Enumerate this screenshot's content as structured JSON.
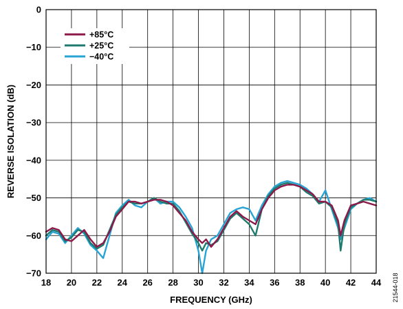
{
  "chart_data": {
    "type": "line",
    "title": "",
    "xlabel": "FREQUENCY (GHz)",
    "ylabel": "REVERSE ISOLATION (dB)",
    "xlim": [
      18,
      44
    ],
    "ylim": [
      -70,
      0
    ],
    "x_ticks": [
      "18",
      "20",
      "22",
      "24",
      "26",
      "28",
      "30",
      "32",
      "34",
      "36",
      "38",
      "40",
      "42",
      "44"
    ],
    "y_ticks": [
      "0",
      "−10",
      "−20",
      "−30",
      "−40",
      "−50",
      "−60",
      "−70"
    ],
    "grid": true,
    "legend_position": "top-left",
    "figure_id": "21544-018",
    "series": [
      {
        "name": "+85°C",
        "color": "#8b1a4a",
        "x": [
          18,
          18.5,
          19,
          19.5,
          20,
          20.5,
          21,
          21.5,
          22,
          22.5,
          23,
          23.5,
          24,
          24.5,
          25,
          25.5,
          26,
          26.5,
          27,
          27.5,
          28,
          28.5,
          29,
          29.5,
          30,
          30.3,
          30.6,
          31,
          31.5,
          32,
          32.5,
          33,
          33.5,
          34,
          34.5,
          35,
          35.5,
          36,
          36.5,
          37,
          37.5,
          38,
          38.5,
          39,
          39.5,
          40,
          40.5,
          41,
          41.2,
          41.5,
          42,
          42.5,
          43,
          43.5,
          44
        ],
        "values": [
          -59,
          -58,
          -58.5,
          -61,
          -61.5,
          -60,
          -58.5,
          -61,
          -63,
          -62,
          -59,
          -55,
          -53,
          -51,
          -51,
          -51.5,
          -51,
          -50.5,
          -50.5,
          -51,
          -52,
          -54,
          -56,
          -59,
          -61,
          -62,
          -61,
          -63,
          -61,
          -58,
          -55,
          -53.5,
          -55,
          -56,
          -57,
          -53,
          -50,
          -48,
          -47,
          -46.5,
          -46.5,
          -47,
          -48,
          -49,
          -51,
          -51,
          -52,
          -56,
          -60,
          -56,
          -52,
          -51.5,
          -51,
          -51.5,
          -52
        ]
      },
      {
        "name": "+25°C",
        "color": "#1f7a6e",
        "x": [
          18,
          18.5,
          19,
          19.5,
          20,
          20.5,
          21,
          21.5,
          22,
          22.5,
          23,
          23.5,
          24,
          24.5,
          25,
          25.5,
          26,
          26.5,
          27,
          27.5,
          28,
          28.5,
          29,
          29.5,
          30,
          30.3,
          30.6,
          31,
          31.5,
          32,
          32.5,
          33,
          33.5,
          34,
          34.5,
          35,
          35.5,
          36,
          36.5,
          37,
          37.5,
          38,
          38.5,
          39,
          39.5,
          40,
          40.5,
          41,
          41.2,
          41.5,
          42,
          42.5,
          43,
          43.5,
          44
        ],
        "values": [
          -60,
          -58.5,
          -59,
          -61.5,
          -60.5,
          -58.5,
          -59,
          -62,
          -63.5,
          -62.5,
          -58.5,
          -54.5,
          -52.5,
          -51,
          -51.5,
          -51.5,
          -51,
          -50,
          -51,
          -51.5,
          -51.5,
          -53.5,
          -56.5,
          -59.5,
          -62,
          -64,
          -62,
          -62.5,
          -61.5,
          -58.5,
          -55.5,
          -54,
          -55.5,
          -57,
          -60,
          -53,
          -49.5,
          -47.5,
          -46.5,
          -46,
          -46.5,
          -47,
          -48.5,
          -49.5,
          -51.5,
          -51,
          -52.5,
          -57,
          -64,
          -57,
          -52.5,
          -51.5,
          -50.5,
          -50.5,
          -51
        ]
      },
      {
        "name": "−40°C",
        "color": "#27a3d4",
        "x": [
          18,
          18.5,
          19,
          19.5,
          20,
          20.5,
          21,
          21.5,
          22,
          22.5,
          23,
          23.5,
          24,
          24.5,
          25,
          25.5,
          26,
          26.5,
          27,
          27.5,
          28,
          28.5,
          29,
          29.5,
          30,
          30.3,
          30.6,
          31,
          31.5,
          32,
          32.5,
          33,
          33.5,
          34,
          34.5,
          35,
          35.5,
          36,
          36.5,
          37,
          37.5,
          38,
          38.5,
          39,
          39.5,
          40,
          40.5,
          41,
          41.2,
          41.5,
          42,
          42.5,
          43,
          43.5,
          44
        ],
        "values": [
          -61,
          -59,
          -59.5,
          -62,
          -60,
          -58,
          -59.5,
          -62.5,
          -64,
          -66,
          -60,
          -54,
          -52,
          -50.5,
          -52,
          -52.5,
          -51,
          -50,
          -51.5,
          -51,
          -51,
          -52.5,
          -55,
          -58,
          -64,
          -70,
          -64,
          -61,
          -60,
          -57,
          -54,
          -53,
          -52.5,
          -53,
          -56,
          -52,
          -49,
          -47,
          -46,
          -45.5,
          -46,
          -46.5,
          -47.5,
          -49,
          -51,
          -48,
          -53,
          -58,
          -61,
          -58,
          -53,
          -51.5,
          -50.5,
          -50,
          -51
        ]
      }
    ]
  }
}
